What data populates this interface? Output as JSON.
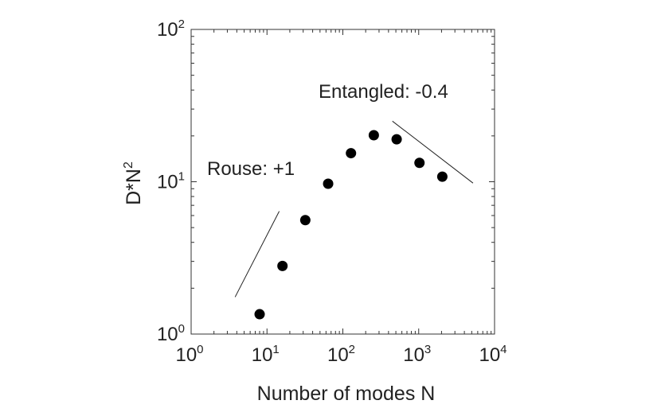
{
  "chart_data": {
    "type": "scatter",
    "xscale": "log",
    "yscale": "log",
    "xlim": [
      1,
      10000
    ],
    "ylim": [
      1,
      100
    ],
    "xlabel": "Number of modes N",
    "ylabel_base": "D*N",
    "ylabel_sup": "2",
    "grid": false,
    "x_ticks": [
      {
        "base": "10",
        "exp": "0",
        "value": 1
      },
      {
        "base": "10",
        "exp": "1",
        "value": 10
      },
      {
        "base": "10",
        "exp": "2",
        "value": 100
      },
      {
        "base": "10",
        "exp": "3",
        "value": 1000
      },
      {
        "base": "10",
        "exp": "4",
        "value": 10000
      }
    ],
    "y_ticks": [
      {
        "base": "10",
        "exp": "0",
        "value": 1
      },
      {
        "base": "10",
        "exp": "1",
        "value": 10
      },
      {
        "base": "10",
        "exp": "2",
        "value": 100
      }
    ],
    "points": [
      {
        "x": 8,
        "y": 1.35
      },
      {
        "x": 16,
        "y": 2.8
      },
      {
        "x": 32,
        "y": 5.6
      },
      {
        "x": 64,
        "y": 9.7
      },
      {
        "x": 128,
        "y": 15.4
      },
      {
        "x": 256,
        "y": 20.2
      },
      {
        "x": 512,
        "y": 19.0
      },
      {
        "x": 1024,
        "y": 13.3
      },
      {
        "x": 2048,
        "y": 10.8
      }
    ],
    "marker_color": "#000000",
    "reference_lines": [
      {
        "label": "Rouse: +1",
        "x": [
          3.8,
          14.5
        ],
        "y": [
          1.75,
          6.4
        ]
      },
      {
        "label": "Entangled: -0.4",
        "x": [
          450,
          5200
        ],
        "y": [
          25,
          9.8
        ]
      }
    ]
  }
}
